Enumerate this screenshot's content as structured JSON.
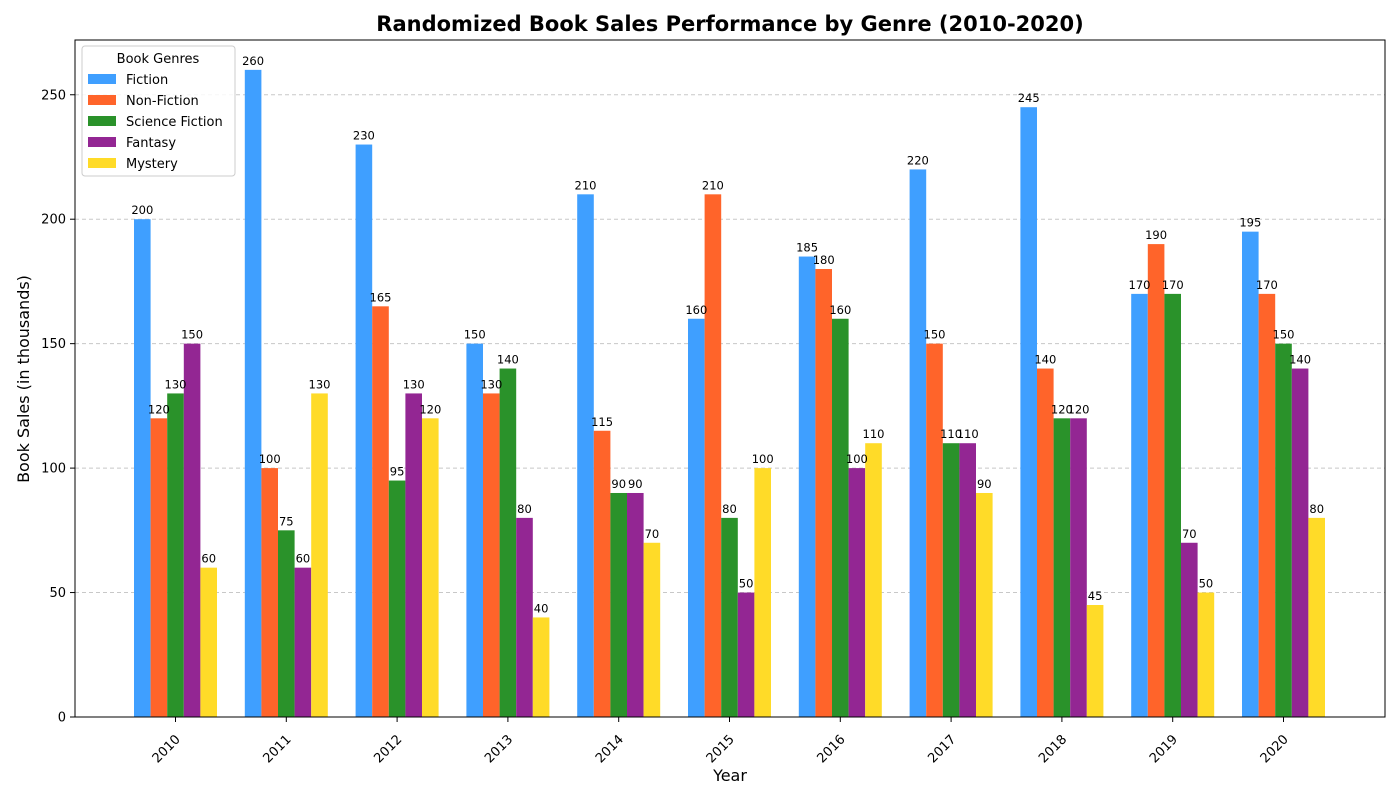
{
  "chart_data": {
    "type": "bar",
    "title": "Randomized Book Sales Performance by Genre (2010-2020)",
    "xlabel": "Year",
    "ylabel": "Book Sales (in thousands)",
    "ylim": [
      0,
      272
    ],
    "yticks": [
      0,
      50,
      100,
      150,
      200,
      250
    ],
    "grid": "y-dashed",
    "legend": {
      "title": "Book Genres",
      "placement": "top-left"
    },
    "categories": [
      "2010",
      "2011",
      "2012",
      "2013",
      "2014",
      "2015",
      "2016",
      "2017",
      "2018",
      "2019",
      "2020"
    ],
    "series": [
      {
        "name": "Fiction",
        "color": "#3f9fff",
        "values": [
          200,
          260,
          230,
          150,
          210,
          160,
          185,
          220,
          245,
          170,
          195
        ]
      },
      {
        "name": "Non-Fiction",
        "color": "#ff642a",
        "values": [
          120,
          100,
          165,
          130,
          115,
          210,
          180,
          150,
          140,
          190,
          170
        ]
      },
      {
        "name": "Science Fiction",
        "color": "#2a922a",
        "values": [
          130,
          75,
          95,
          140,
          90,
          80,
          160,
          110,
          120,
          170,
          150
        ]
      },
      {
        "name": "Fantasy",
        "color": "#932693",
        "values": [
          150,
          60,
          130,
          80,
          90,
          50,
          100,
          110,
          120,
          70,
          140
        ]
      },
      {
        "name": "Mystery",
        "color": "#ffdb28",
        "values": [
          60,
          130,
          120,
          40,
          70,
          100,
          110,
          90,
          45,
          50,
          80
        ]
      }
    ]
  }
}
